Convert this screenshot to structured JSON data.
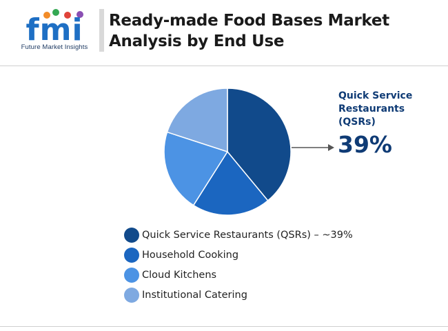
{
  "header": {
    "title_line1": "Ready-made Food Bases Market",
    "title_line2": "Analysis by End Use",
    "logo_text": "fmi",
    "logo_caption": "Future Market Insights"
  },
  "callout": {
    "label": "Quick Service Restaurants (QSRs)",
    "value": "39%"
  },
  "colors": {
    "qsr": "#114a8b",
    "household": "#1b66c0",
    "cloud": "#4c93e4",
    "institutional": "#7ea9e1",
    "logo_blue": "#1e6fc4",
    "text_dark": "#0f3b75"
  },
  "chart_data": {
    "type": "pie",
    "title": "Ready-made Food Bases Market Analysis by End Use",
    "categories": [
      "Quick Service Restaurants (QSRs)",
      "Household Cooking",
      "Cloud Kitchens",
      "Institutional Catering"
    ],
    "values": [
      39,
      20,
      21,
      20
    ],
    "legend_labels": [
      "Quick Service Restaurants (QSRs) – ~39%",
      "Household Cooking",
      "Cloud Kitchens",
      "Institutional Catering"
    ],
    "colors": [
      "#114a8b",
      "#1b66c0",
      "#4c93e4",
      "#7ea9e1"
    ],
    "start_angle_deg": 0,
    "direction": "clockwise",
    "legend_position": "bottom"
  }
}
